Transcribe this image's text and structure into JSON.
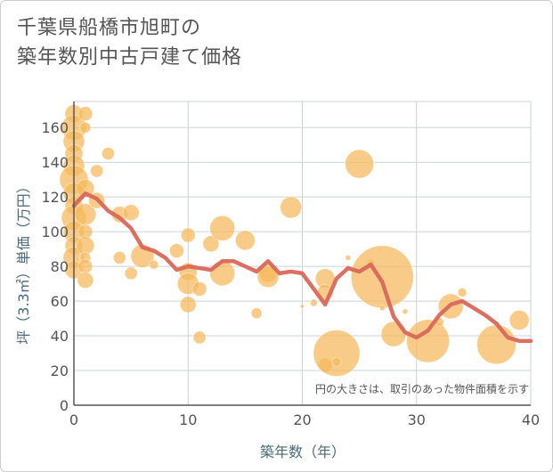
{
  "chart_data": {
    "type": "scatter",
    "title_lines": [
      "千葉県船橋市旭町の",
      "築年数別中古戸建て価格"
    ],
    "xlabel": "築年数（年）",
    "ylabel": "坪（3.3㎡）単価（万円）",
    "note": "円の大きさは、取引のあった物件面積を示す",
    "xlim": [
      0,
      40
    ],
    "ylim": [
      0,
      175
    ],
    "x_ticks": [
      0,
      10,
      20,
      30,
      40
    ],
    "y_ticks": [
      0,
      20,
      40,
      60,
      80,
      100,
      120,
      140,
      160
    ],
    "grid": true,
    "colors": {
      "bubble": "#f5b95a",
      "line": "#d9675a",
      "grid": "#c9d3da",
      "axis": "#555555"
    },
    "bubbles": [
      {
        "x": 0,
        "y": 168,
        "size": 10
      },
      {
        "x": 0,
        "y": 160,
        "size": 14
      },
      {
        "x": 0,
        "y": 152,
        "size": 12
      },
      {
        "x": 0,
        "y": 145,
        "size": 10
      },
      {
        "x": 0,
        "y": 138,
        "size": 12
      },
      {
        "x": 0,
        "y": 130,
        "size": 16
      },
      {
        "x": 0,
        "y": 122,
        "size": 12
      },
      {
        "x": 0,
        "y": 115,
        "size": 10
      },
      {
        "x": 0,
        "y": 108,
        "size": 14
      },
      {
        "x": 0,
        "y": 100,
        "size": 12
      },
      {
        "x": 0,
        "y": 92,
        "size": 10
      },
      {
        "x": 0,
        "y": 85,
        "size": 12
      },
      {
        "x": 0,
        "y": 78,
        "size": 10
      },
      {
        "x": 1,
        "y": 168,
        "size": 8
      },
      {
        "x": 1,
        "y": 160,
        "size": 6
      },
      {
        "x": 1,
        "y": 125,
        "size": 10
      },
      {
        "x": 1,
        "y": 110,
        "size": 12
      },
      {
        "x": 1,
        "y": 100,
        "size": 8
      },
      {
        "x": 1,
        "y": 92,
        "size": 10
      },
      {
        "x": 1,
        "y": 85,
        "size": 6
      },
      {
        "x": 1,
        "y": 80,
        "size": 8
      },
      {
        "x": 1,
        "y": 72,
        "size": 9
      },
      {
        "x": 2,
        "y": 135,
        "size": 7
      },
      {
        "x": 2,
        "y": 118,
        "size": 9
      },
      {
        "x": 3,
        "y": 145,
        "size": 7
      },
      {
        "x": 4,
        "y": 110,
        "size": 9
      },
      {
        "x": 4,
        "y": 85,
        "size": 7
      },
      {
        "x": 5,
        "y": 111,
        "size": 9
      },
      {
        "x": 5,
        "y": 76,
        "size": 7
      },
      {
        "x": 6,
        "y": 86,
        "size": 13
      },
      {
        "x": 7,
        "y": 81,
        "size": 5
      },
      {
        "x": 9,
        "y": 89,
        "size": 8
      },
      {
        "x": 10,
        "y": 98,
        "size": 8
      },
      {
        "x": 10,
        "y": 77,
        "size": 10
      },
      {
        "x": 10,
        "y": 70,
        "size": 12
      },
      {
        "x": 10,
        "y": 58,
        "size": 9
      },
      {
        "x": 11,
        "y": 67,
        "size": 8
      },
      {
        "x": 11,
        "y": 39,
        "size": 7
      },
      {
        "x": 12,
        "y": 93,
        "size": 9
      },
      {
        "x": 13,
        "y": 102,
        "size": 14
      },
      {
        "x": 13,
        "y": 76,
        "size": 14
      },
      {
        "x": 15,
        "y": 95,
        "size": 11
      },
      {
        "x": 16,
        "y": 53,
        "size": 6
      },
      {
        "x": 17,
        "y": 76,
        "size": 10
      },
      {
        "x": 17,
        "y": 74,
        "size": 12
      },
      {
        "x": 19,
        "y": 114,
        "size": 12
      },
      {
        "x": 20,
        "y": 57,
        "size": 2
      },
      {
        "x": 21,
        "y": 59,
        "size": 4
      },
      {
        "x": 22,
        "y": 73,
        "size": 11
      },
      {
        "x": 22,
        "y": 65,
        "size": 9
      },
      {
        "x": 22,
        "y": 23,
        "size": 8
      },
      {
        "x": 23,
        "y": 30,
        "size": 26
      },
      {
        "x": 23,
        "y": 25,
        "size": 5
      },
      {
        "x": 24,
        "y": 85,
        "size": 3
      },
      {
        "x": 25,
        "y": 139,
        "size": 16
      },
      {
        "x": 26,
        "y": 82,
        "size": 4
      },
      {
        "x": 27,
        "y": 74,
        "size": 35
      },
      {
        "x": 27,
        "y": 56,
        "size": 3
      },
      {
        "x": 28,
        "y": 41,
        "size": 14
      },
      {
        "x": 29,
        "y": 54,
        "size": 3
      },
      {
        "x": 31,
        "y": 37,
        "size": 24
      },
      {
        "x": 32,
        "y": 48,
        "size": 5
      },
      {
        "x": 33,
        "y": 57,
        "size": 14
      },
      {
        "x": 34,
        "y": 65,
        "size": 5
      },
      {
        "x": 37,
        "y": 35,
        "size": 22
      },
      {
        "x": 39,
        "y": 49,
        "size": 11
      }
    ],
    "trend": {
      "x": [
        0,
        1,
        2,
        3,
        4,
        5,
        6,
        7,
        8,
        9,
        10,
        11,
        12,
        13,
        14,
        15,
        16,
        17,
        18,
        19,
        20,
        21,
        22,
        23,
        24,
        25,
        26,
        27,
        28,
        29,
        30,
        31,
        32,
        33,
        34,
        35,
        36,
        37,
        38,
        39,
        40
      ],
      "y": [
        115,
        122,
        119,
        112,
        108,
        102,
        91,
        89,
        85,
        78,
        80,
        79,
        78,
        83,
        83,
        80,
        77,
        83,
        76,
        77,
        76,
        67,
        58,
        73,
        79,
        77,
        81,
        71,
        51,
        42,
        39,
        43,
        52,
        58,
        60,
        56,
        52,
        47,
        39,
        37,
        37
      ]
    }
  }
}
